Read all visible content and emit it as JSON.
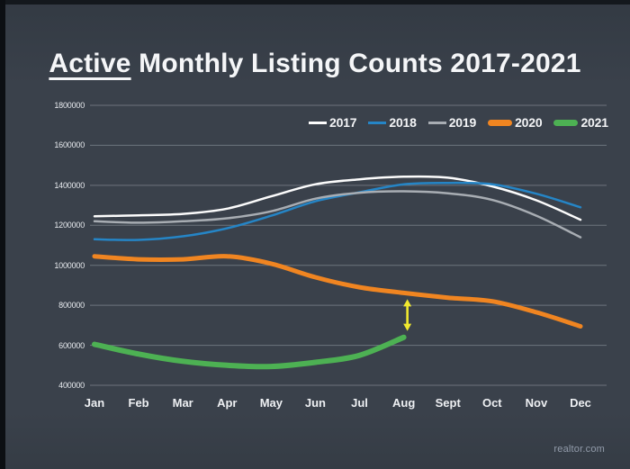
{
  "page": {
    "title_underlined": "Active",
    "title_rest": " Monthly Listing Counts 2017-2021",
    "watermark": "realtor.com"
  },
  "colors": {
    "background": "#3a414b",
    "grid": "rgba(219,225,233,0.32)",
    "title_text": "#f5f6f8",
    "axis_text": "#e8ebef",
    "arrow": "#f1e92f",
    "watermark_text": "#929baa"
  },
  "chart_data": {
    "type": "line",
    "title": "Active Monthly Listing Counts 2017-2021",
    "categories": [
      "Jan",
      "Feb",
      "Mar",
      "Apr",
      "May",
      "Jun",
      "Jul",
      "Aug",
      "Sept",
      "Oct",
      "Nov",
      "Dec"
    ],
    "y_ticks": [
      1800000,
      1600000,
      1400000,
      1200000,
      1000000,
      800000,
      600000,
      400000
    ],
    "ylim": [
      400000,
      1800000
    ],
    "grid": true,
    "legend_position": "top",
    "series": [
      {
        "name": "2017",
        "color": "#fcfcfc",
        "width": 2.5,
        "values": [
          1245000,
          1250000,
          1257000,
          1283000,
          1345000,
          1405000,
          1430000,
          1443000,
          1438000,
          1395000,
          1325000,
          1228000
        ]
      },
      {
        "name": "2018",
        "color": "#2585c6",
        "width": 2.5,
        "values": [
          1130000,
          1127000,
          1145000,
          1185000,
          1248000,
          1320000,
          1365000,
          1405000,
          1412000,
          1405000,
          1358000,
          1290000
        ]
      },
      {
        "name": "2019",
        "color": "#a8adb3",
        "width": 2.5,
        "values": [
          1220000,
          1213000,
          1220000,
          1235000,
          1270000,
          1333000,
          1363000,
          1370000,
          1360000,
          1327000,
          1248000,
          1140000
        ]
      },
      {
        "name": "2020",
        "color": "#f08521",
        "width": 5,
        "values": [
          1045000,
          1030000,
          1030000,
          1045000,
          1008000,
          940000,
          890000,
          862000,
          838000,
          820000,
          765000,
          695000
        ]
      },
      {
        "name": "2021",
        "color": "#4db153",
        "width": 6,
        "values": [
          605000,
          556000,
          520000,
          500000,
          494000,
          515000,
          550000,
          640000
        ]
      }
    ],
    "annotation": {
      "type": "double-arrow",
      "month": "Aug",
      "between": [
        "2020",
        "2021"
      ],
      "color": "#f1e92f"
    }
  }
}
